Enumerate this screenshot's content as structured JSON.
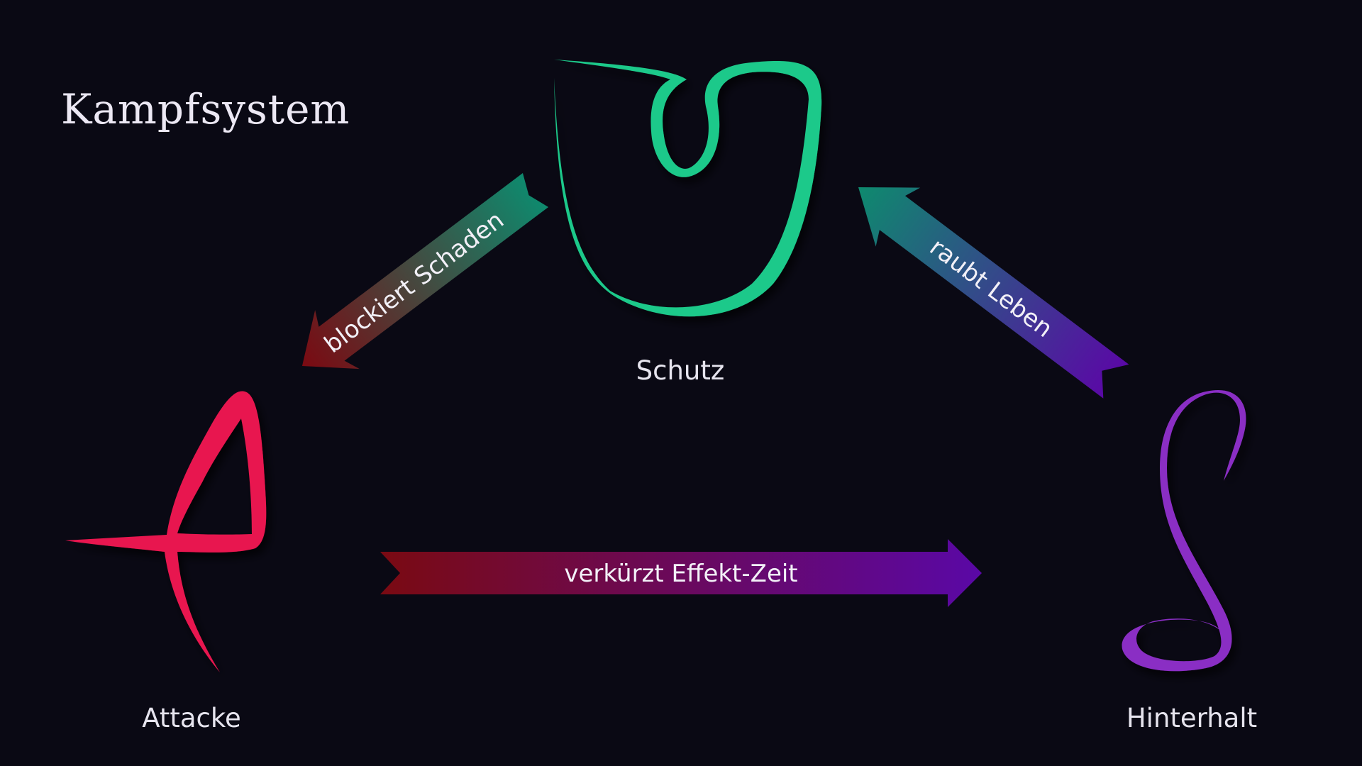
{
  "title": "Kampfsystem",
  "nodes": {
    "schutz": {
      "label": "Schutz",
      "color": "#1ec98a"
    },
    "attacke": {
      "label": "Attacke",
      "color": "#e8194f"
    },
    "hinterhalt": {
      "label": "Hinterhalt",
      "color": "#8a2fc4"
    }
  },
  "relations": {
    "schutz_attacke": {
      "label": "blockiert Schaden",
      "color_from": "#0e8a6e",
      "color_to": "#7a0a12"
    },
    "attacke_hinterhalt": {
      "label": "verkürzt Effekt-Zeit",
      "color_from": "#7a0a12",
      "color_to": "#5a08a6"
    },
    "hinterhalt_schutz": {
      "label": "raubt Leben",
      "color_from": "#0e8a6e",
      "color_to": "#5a08a6"
    }
  }
}
